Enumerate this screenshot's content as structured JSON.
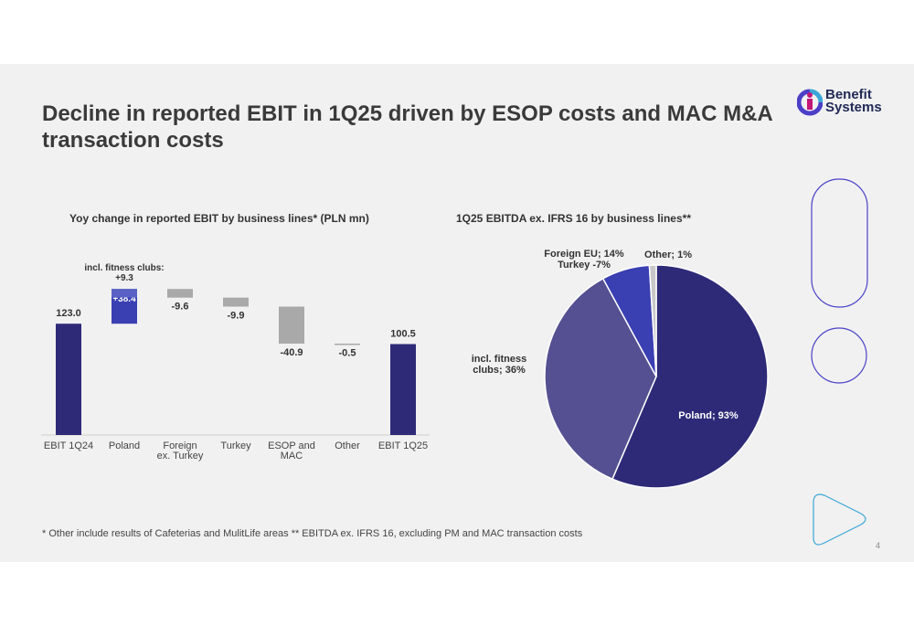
{
  "slide": {
    "title": "Decline in reported EBIT in 1Q25 driven by ESOP costs and MAC M&A transaction costs",
    "logo_line1": "Benefit",
    "logo_line2": "Systems",
    "footnote": "* Other include results of Cafeterias and MulitLife areas ** EBITDA ex. IFRS 16, excluding PM and MAC transaction costs",
    "page_number": "4"
  },
  "colors": {
    "navy": "#2e2a78",
    "blue_bright": "#3a3fb2",
    "blue_light": "#5961c4",
    "purple": "#545091",
    "gray": "#a9a9a9",
    "accent_outline": "#4b43c8",
    "teal": "#3aa7d6"
  },
  "chart_data": [
    {
      "type": "bar",
      "subtype": "waterfall",
      "title": "Yoy change in reported EBIT by business lines* (PLN mn)",
      "categories": [
        "EBIT 1Q24",
        "Poland",
        "Foreign ex. Turkey",
        "Turkey",
        "ESOP and MAC",
        "Other",
        "EBIT 1Q25"
      ],
      "values": [
        123.0,
        38.4,
        -9.6,
        -9.9,
        -40.9,
        -0.5,
        100.5
      ],
      "value_labels": [
        "123.0",
        "+38.4",
        "-9.6",
        "-9.9",
        "-40.9",
        "-0.5",
        "100.5"
      ],
      "annotation": {
        "label": "incl. fitness clubs:",
        "value_label": "+9.3",
        "value": 9.3
      },
      "ylim": [
        0,
        165
      ]
    },
    {
      "type": "pie",
      "title": "1Q25 EBITDA ex. IFRS 16 by business lines**",
      "slices": [
        {
          "label": "Poland; 93%",
          "value": 93
        },
        {
          "label": "Foreign EU; 14%",
          "value": 14
        },
        {
          "label": "Turkey -7%",
          "value": -7
        },
        {
          "label": "Other; 1%",
          "value": 1
        }
      ],
      "inner_annotation": {
        "label_line1": "incl. fitness",
        "label_line2": "clubs; 36%",
        "value": 36
      }
    }
  ]
}
